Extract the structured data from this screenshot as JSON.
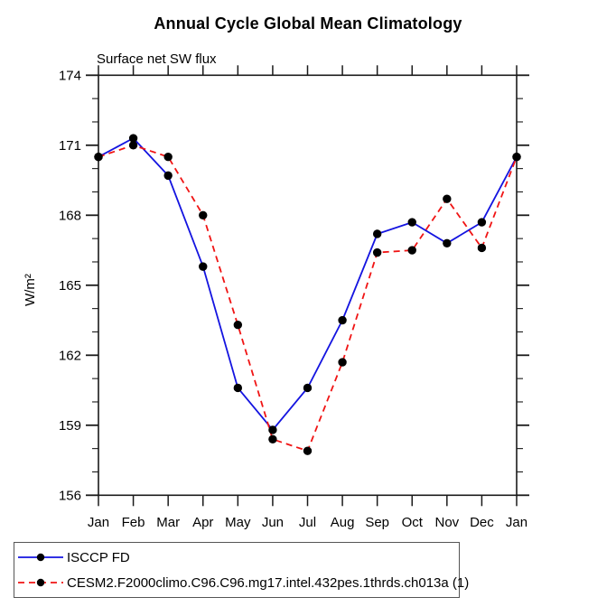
{
  "title": "Annual Cycle Global Mean Climatology",
  "subtitle": "Surface net SW flux",
  "chart_data": {
    "type": "line",
    "x_categories": [
      "Jan",
      "Feb",
      "Mar",
      "Apr",
      "May",
      "Jun",
      "Jul",
      "Aug",
      "Sep",
      "Oct",
      "Nov",
      "Dec",
      "Jan"
    ],
    "ylabel": "W/m²",
    "ylim": [
      156,
      174
    ],
    "ytick_major": [
      156,
      159,
      162,
      165,
      168,
      171,
      174
    ],
    "ytick_minor_step": 1,
    "grid": false,
    "legend_position": "bottom-left",
    "marker_color": "#000000",
    "axis_color": "#1a1a1a",
    "series": [
      {
        "name": "ISCCP FD",
        "color": "#1414e0",
        "dash": "solid",
        "values": [
          170.5,
          171.3,
          169.7,
          165.8,
          160.6,
          158.8,
          160.6,
          163.5,
          167.2,
          167.7,
          166.8,
          167.7,
          170.5
        ]
      },
      {
        "name": "CESM2.F2000climo.C96.C96.mg17.intel.432pes.1thrds.ch013a (1)",
        "color": "#f01414",
        "dash": "dashed",
        "values": [
          170.5,
          171.0,
          170.5,
          168.0,
          163.3,
          158.4,
          157.9,
          161.7,
          166.4,
          166.5,
          168.7,
          166.6,
          170.5
        ]
      }
    ]
  }
}
